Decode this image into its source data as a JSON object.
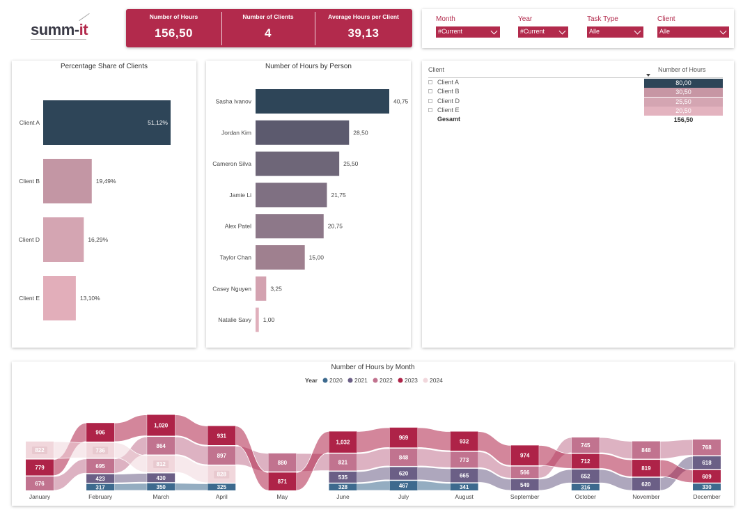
{
  "brand": {
    "name_main": "summ-",
    "name_accent": "it",
    "accent_color": "#b22a4c"
  },
  "kpis": [
    {
      "label": "Number of Hours",
      "value": "156,50"
    },
    {
      "label": "Number of Clients",
      "value": "4"
    },
    {
      "label": "Average Hours per Client",
      "value": "39,13"
    }
  ],
  "filters": [
    {
      "label": "Month",
      "value": "#Current"
    },
    {
      "label": "Year",
      "value": "#Current"
    },
    {
      "label": "Task Type",
      "value": "Alle"
    },
    {
      "label": "Client",
      "value": "Alle"
    }
  ],
  "client_table": {
    "col_client": "Client",
    "col_hours": "Number of Hours",
    "rows": [
      {
        "client": "Client A",
        "hours": "80,00",
        "color": "#2e4558",
        "text_color": "#ffffff"
      },
      {
        "client": "Client B",
        "hours": "30,50",
        "color": "#c796a4",
        "text_color": "#ffffff"
      },
      {
        "client": "Client D",
        "hours": "25,50",
        "color": "#d4a5b2",
        "text_color": "#ffffff"
      },
      {
        "client": "Client E",
        "hours": "20,50",
        "color": "#e3b3bf",
        "text_color": "#ffffff"
      }
    ],
    "total_label": "Gesamt",
    "total_value": "156,50"
  },
  "chart_data": [
    {
      "type": "bar",
      "orientation": "horizontal",
      "title": "Percentage Share of Clients",
      "categories": [
        "Client A",
        "Client B",
        "Client D",
        "Client E"
      ],
      "values": [
        51.12,
        19.49,
        16.29,
        13.1
      ],
      "labels": [
        "51,12%",
        "19,49%",
        "16,29%",
        "13,10%"
      ],
      "colors": [
        "#2e4558",
        "#c396a4",
        "#d4a5b2",
        "#e2aeba"
      ]
    },
    {
      "type": "bar",
      "orientation": "horizontal",
      "title": "Number of Hours by Person",
      "categories": [
        "Sasha Ivanov",
        "Jordan Kim",
        "Cameron Silva",
        "Jamie Li",
        "Alex Patel",
        "Taylor Chan",
        "Casey Nguyen",
        "Natalie Savy"
      ],
      "values": [
        40.75,
        28.5,
        25.5,
        21.75,
        20.75,
        15.0,
        3.25,
        1.0
      ],
      "labels": [
        "40,75",
        "28,50",
        "25,50",
        "21,75",
        "20,75",
        "15,00",
        "3,25",
        "1,00"
      ],
      "colors": [
        "#2e4558",
        "#5c5a6e",
        "#6e6678",
        "#7f7082",
        "#8d7889",
        "#9f808f",
        "#d3a2b0",
        "#e0b0bc"
      ]
    },
    {
      "type": "area",
      "subtype": "ribbon",
      "title": "Number of Hours by Month",
      "legend_title": "Year",
      "legend_position": "top",
      "categories": [
        "January",
        "February",
        "March",
        "April",
        "May",
        "June",
        "July",
        "August",
        "September",
        "October",
        "November",
        "December"
      ],
      "series": [
        {
          "name": "2020",
          "color": "#3d6a8e",
          "values": [
            null,
            317,
            350,
            325,
            null,
            328,
            467,
            341,
            null,
            316,
            null,
            330
          ]
        },
        {
          "name": "2021",
          "color": "#6b5f86",
          "values": [
            null,
            423,
            430,
            null,
            null,
            535,
            620,
            665,
            549,
            652,
            620,
            618
          ]
        },
        {
          "name": "2022",
          "color": "#c1738f",
          "values": [
            676,
            695,
            864,
            897,
            880,
            821,
            848,
            773,
            566,
            745,
            848,
            768
          ]
        },
        {
          "name": "2023",
          "color": "#ae2348",
          "values": [
            779,
            906,
            1020,
            931,
            871,
            1032,
            969,
            932,
            974,
            712,
            819,
            609
          ]
        },
        {
          "name": "2024",
          "color": "#f1d7dc",
          "values": [
            822,
            736,
            812,
            828,
            null,
            null,
            null,
            null,
            null,
            null,
            null,
            null
          ]
        }
      ]
    }
  ]
}
